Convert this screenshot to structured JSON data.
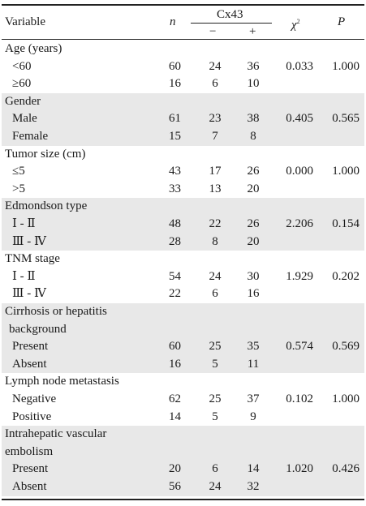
{
  "header": {
    "variable": "Variable",
    "n": "n",
    "cx43": "Cx43",
    "minus": "−",
    "plus": "+",
    "chi": "χ",
    "chi_sup": "2",
    "p": "P"
  },
  "rows": [
    {
      "label": "Age (years)",
      "type": "group"
    },
    {
      "label": "<60",
      "n": "60",
      "neg": "24",
      "pos": "36",
      "chi": "0.033",
      "p": "1.000",
      "type": "sub"
    },
    {
      "label": "≥60",
      "n": "16",
      "neg": "6",
      "pos": "10",
      "type": "sub"
    },
    {
      "label": "Gender",
      "type": "group"
    },
    {
      "label": "Male",
      "n": "61",
      "neg": "23",
      "pos": "38",
      "chi": "0.405",
      "p": "0.565",
      "type": "sub"
    },
    {
      "label": "Female",
      "n": "15",
      "neg": "7",
      "pos": "8",
      "type": "sub"
    },
    {
      "label": "Tumor size (cm)",
      "type": "group"
    },
    {
      "label": "≤5",
      "n": "43",
      "neg": "17",
      "pos": "26",
      "chi": "0.000",
      "p": "1.000",
      "type": "sub"
    },
    {
      "label": ">5",
      "n": "33",
      "neg": "13",
      "pos": "20",
      "type": "sub"
    },
    {
      "label": "Edmondson type",
      "type": "group"
    },
    {
      "label": "Ⅰ - Ⅱ",
      "n": "48",
      "neg": "22",
      "pos": "26",
      "chi": "2.206",
      "p": "0.154",
      "type": "sub"
    },
    {
      "label": "Ⅲ - Ⅳ",
      "n": "28",
      "neg": "8",
      "pos": "20",
      "type": "sub"
    },
    {
      "label": "TNM stage",
      "type": "group"
    },
    {
      "label": "Ⅰ - Ⅱ",
      "n": "54",
      "neg": "24",
      "pos": "30",
      "chi": "1.929",
      "p": "0.202",
      "type": "sub"
    },
    {
      "label": "Ⅲ - Ⅳ",
      "n": "22",
      "neg": "6",
      "pos": "16",
      "type": "sub"
    },
    {
      "label": "Cirrhosis or hepatitis",
      "type": "group"
    },
    {
      "label": "background",
      "type": "group2"
    },
    {
      "label": "Present",
      "n": "60",
      "neg": "25",
      "pos": "35",
      "chi": "0.574",
      "p": "0.569",
      "type": "sub"
    },
    {
      "label": "Absent",
      "n": "16",
      "neg": "5",
      "pos": "11",
      "type": "sub"
    },
    {
      "label": "Lymph node metastasis",
      "type": "group"
    },
    {
      "label": "Negative",
      "n": "62",
      "neg": "25",
      "pos": "37",
      "chi": "0.102",
      "p": "1.000",
      "type": "sub"
    },
    {
      "label": "Positive",
      "n": "14",
      "neg": "5",
      "pos": "9",
      "type": "sub"
    },
    {
      "label": "Intrahepatic vascular",
      "type": "group"
    },
    {
      "label": "embolism",
      "type": "group"
    },
    {
      "label": "Present",
      "n": "20",
      "neg": "6",
      "pos": "14",
      "chi": "1.020",
      "p": "0.426",
      "type": "sub"
    },
    {
      "label": "Absent",
      "n": "56",
      "neg": "24",
      "pos": "32",
      "type": "sub"
    }
  ],
  "shaded_groups": [
    1,
    3,
    5,
    7
  ]
}
